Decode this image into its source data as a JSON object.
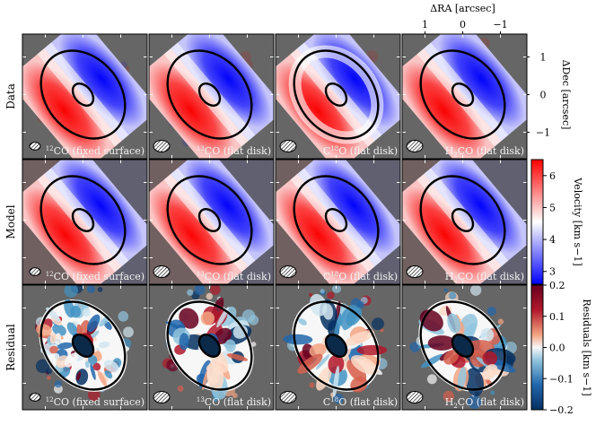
{
  "chart_data": {
    "type": "heatmap",
    "rows": [
      "Data",
      "Model",
      "Residual"
    ],
    "columns": [
      {
        "base": "12",
        "mol": "CO",
        "method": " (fixed surface)"
      },
      {
        "base": "13",
        "mol": "CO",
        "method": " (flat disk)"
      },
      {
        "base": "C",
        "sup": "18",
        "mol": "O",
        "method": " (flat disk)"
      },
      {
        "base": "H",
        "sub": "2",
        "mol": "CO",
        "method": " (flat disk)"
      }
    ],
    "xaxis": {
      "label": "ΔRA [arcsec]",
      "ticks": [
        "1",
        "0",
        "−1"
      ],
      "range": [
        1.7,
        -1.7
      ]
    },
    "yaxis": {
      "label": "ΔDec [arcsec]",
      "ticks": [
        "1",
        "0",
        "−1"
      ],
      "range": [
        -1.7,
        1.7
      ]
    },
    "colorbar_velocity": {
      "label": "Velocity [km s−1]",
      "ticks": [
        "3",
        "4",
        "5",
        "6"
      ],
      "range": [
        2.6,
        6.5
      ],
      "cmap": "bwr"
    },
    "colorbar_residual": {
      "label": "Residuals [km s−1]",
      "ticks": [
        "0.2",
        "0.1",
        "0.0",
        "−0.1",
        "−0.2"
      ],
      "range": [
        -0.2,
        0.2
      ],
      "cmap": "RdBu_r"
    },
    "model_ellipses": {
      "outer_semi_major_arcsec": 1.4,
      "inner_semi_major_arcsec": 0.37,
      "position_angle_deg": -40
    },
    "beam_icon": "hatched-ellipse",
    "panel_background": "#666666"
  }
}
